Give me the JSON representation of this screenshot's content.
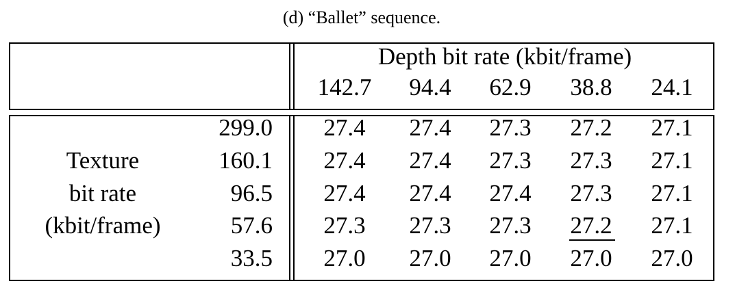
{
  "caption": "(d)  “Ballet” sequence.",
  "header": {
    "title": "Depth bit rate (kbit/frame)",
    "columns": [
      "142.7",
      "94.4",
      "62.9",
      "38.8",
      "24.1"
    ]
  },
  "row_header": {
    "lines": [
      "Texture",
      "bit rate",
      "(kbit/frame)"
    ]
  },
  "table": {
    "row_labels": [
      "299.0",
      "160.1",
      "96.5",
      "57.6",
      "33.5"
    ],
    "rows": [
      [
        "27.4",
        "27.4",
        "27.3",
        "27.2",
        "27.1"
      ],
      [
        "27.4",
        "27.4",
        "27.3",
        "27.3",
        "27.1"
      ],
      [
        "27.4",
        "27.4",
        "27.4",
        "27.3",
        "27.1"
      ],
      [
        "27.3",
        "27.3",
        "27.3",
        "27.2",
        "27.1"
      ],
      [
        "27.0",
        "27.0",
        "27.0",
        "27.0",
        "27.0"
      ]
    ]
  }
}
